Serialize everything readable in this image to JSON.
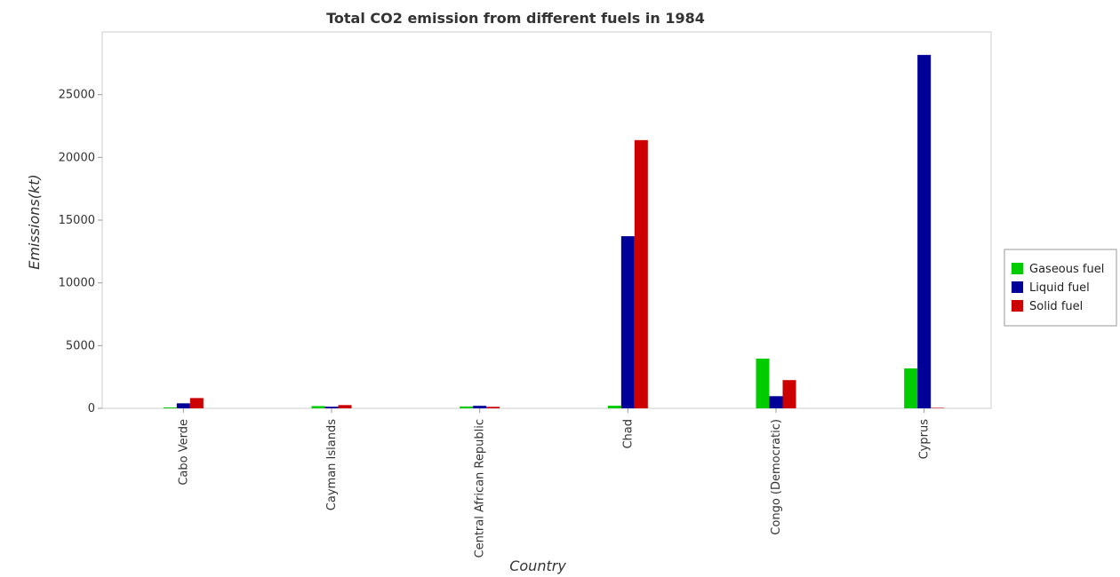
{
  "chart_data": {
    "type": "bar",
    "title": "Total CO2 emission from different fuels in 1984",
    "xlabel": "Country",
    "ylabel": "Emissions(kt)",
    "ylim": [
      0,
      30000
    ],
    "yticks": [
      0,
      5000,
      10000,
      15000,
      20000,
      25000
    ],
    "ytick_labels": [
      "0",
      "5000",
      "10000",
      "15000",
      "20000",
      "25000"
    ],
    "grid": false,
    "legend_position": "right",
    "categories": [
      "Cabo Verde",
      "Cayman Islands",
      "Central African Republic",
      "Chad",
      "Congo (Democratic)",
      "Cyprus"
    ],
    "series": [
      {
        "name": "Gaseous fuel",
        "color": "#00cc00",
        "values": [
          70,
          180,
          150,
          210,
          3960,
          3180
        ]
      },
      {
        "name": "Liquid fuel",
        "color": "#000099",
        "values": [
          400,
          130,
          200,
          13720,
          970,
          28170
        ]
      },
      {
        "name": "Solid fuel",
        "color": "#cc0000",
        "values": [
          820,
          260,
          120,
          21380,
          2250,
          40
        ]
      }
    ]
  }
}
